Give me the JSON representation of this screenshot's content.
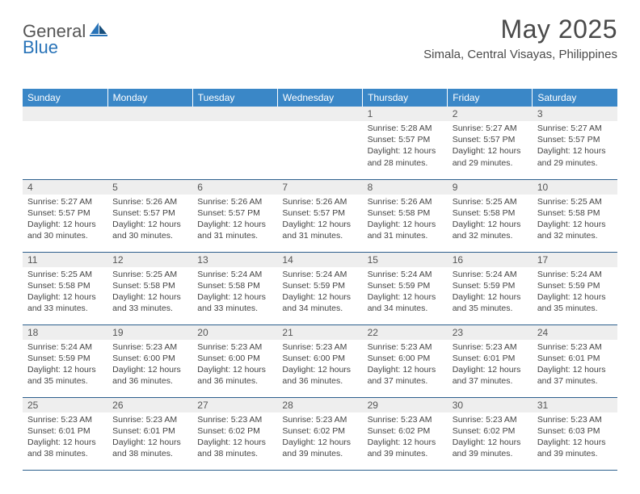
{
  "logo": {
    "general": "General",
    "blue": "Blue"
  },
  "title": "May 2025",
  "location": "Simala, Central Visayas, Philippines",
  "header_bg": "#3a87c7",
  "header_fg": "#ffffff",
  "daynum_bg": "#eeeeee",
  "border_color": "#2c5f8d",
  "weekdays": [
    "Sunday",
    "Monday",
    "Tuesday",
    "Wednesday",
    "Thursday",
    "Friday",
    "Saturday"
  ],
  "weeks": [
    [
      null,
      null,
      null,
      null,
      {
        "n": "1",
        "sr": "5:28 AM",
        "ss": "5:57 PM",
        "dl": "12 hours and 28 minutes."
      },
      {
        "n": "2",
        "sr": "5:27 AM",
        "ss": "5:57 PM",
        "dl": "12 hours and 29 minutes."
      },
      {
        "n": "3",
        "sr": "5:27 AM",
        "ss": "5:57 PM",
        "dl": "12 hours and 29 minutes."
      }
    ],
    [
      {
        "n": "4",
        "sr": "5:27 AM",
        "ss": "5:57 PM",
        "dl": "12 hours and 30 minutes."
      },
      {
        "n": "5",
        "sr": "5:26 AM",
        "ss": "5:57 PM",
        "dl": "12 hours and 30 minutes."
      },
      {
        "n": "6",
        "sr": "5:26 AM",
        "ss": "5:57 PM",
        "dl": "12 hours and 31 minutes."
      },
      {
        "n": "7",
        "sr": "5:26 AM",
        "ss": "5:57 PM",
        "dl": "12 hours and 31 minutes."
      },
      {
        "n": "8",
        "sr": "5:26 AM",
        "ss": "5:58 PM",
        "dl": "12 hours and 31 minutes."
      },
      {
        "n": "9",
        "sr": "5:25 AM",
        "ss": "5:58 PM",
        "dl": "12 hours and 32 minutes."
      },
      {
        "n": "10",
        "sr": "5:25 AM",
        "ss": "5:58 PM",
        "dl": "12 hours and 32 minutes."
      }
    ],
    [
      {
        "n": "11",
        "sr": "5:25 AM",
        "ss": "5:58 PM",
        "dl": "12 hours and 33 minutes."
      },
      {
        "n": "12",
        "sr": "5:25 AM",
        "ss": "5:58 PM",
        "dl": "12 hours and 33 minutes."
      },
      {
        "n": "13",
        "sr": "5:24 AM",
        "ss": "5:58 PM",
        "dl": "12 hours and 33 minutes."
      },
      {
        "n": "14",
        "sr": "5:24 AM",
        "ss": "5:59 PM",
        "dl": "12 hours and 34 minutes."
      },
      {
        "n": "15",
        "sr": "5:24 AM",
        "ss": "5:59 PM",
        "dl": "12 hours and 34 minutes."
      },
      {
        "n": "16",
        "sr": "5:24 AM",
        "ss": "5:59 PM",
        "dl": "12 hours and 35 minutes."
      },
      {
        "n": "17",
        "sr": "5:24 AM",
        "ss": "5:59 PM",
        "dl": "12 hours and 35 minutes."
      }
    ],
    [
      {
        "n": "18",
        "sr": "5:24 AM",
        "ss": "5:59 PM",
        "dl": "12 hours and 35 minutes."
      },
      {
        "n": "19",
        "sr": "5:23 AM",
        "ss": "6:00 PM",
        "dl": "12 hours and 36 minutes."
      },
      {
        "n": "20",
        "sr": "5:23 AM",
        "ss": "6:00 PM",
        "dl": "12 hours and 36 minutes."
      },
      {
        "n": "21",
        "sr": "5:23 AM",
        "ss": "6:00 PM",
        "dl": "12 hours and 36 minutes."
      },
      {
        "n": "22",
        "sr": "5:23 AM",
        "ss": "6:00 PM",
        "dl": "12 hours and 37 minutes."
      },
      {
        "n": "23",
        "sr": "5:23 AM",
        "ss": "6:01 PM",
        "dl": "12 hours and 37 minutes."
      },
      {
        "n": "24",
        "sr": "5:23 AM",
        "ss": "6:01 PM",
        "dl": "12 hours and 37 minutes."
      }
    ],
    [
      {
        "n": "25",
        "sr": "5:23 AM",
        "ss": "6:01 PM",
        "dl": "12 hours and 38 minutes."
      },
      {
        "n": "26",
        "sr": "5:23 AM",
        "ss": "6:01 PM",
        "dl": "12 hours and 38 minutes."
      },
      {
        "n": "27",
        "sr": "5:23 AM",
        "ss": "6:02 PM",
        "dl": "12 hours and 38 minutes."
      },
      {
        "n": "28",
        "sr": "5:23 AM",
        "ss": "6:02 PM",
        "dl": "12 hours and 39 minutes."
      },
      {
        "n": "29",
        "sr": "5:23 AM",
        "ss": "6:02 PM",
        "dl": "12 hours and 39 minutes."
      },
      {
        "n": "30",
        "sr": "5:23 AM",
        "ss": "6:02 PM",
        "dl": "12 hours and 39 minutes."
      },
      {
        "n": "31",
        "sr": "5:23 AM",
        "ss": "6:03 PM",
        "dl": "12 hours and 39 minutes."
      }
    ]
  ],
  "labels": {
    "sunrise": "Sunrise:",
    "sunset": "Sunset:",
    "daylight": "Daylight:"
  }
}
